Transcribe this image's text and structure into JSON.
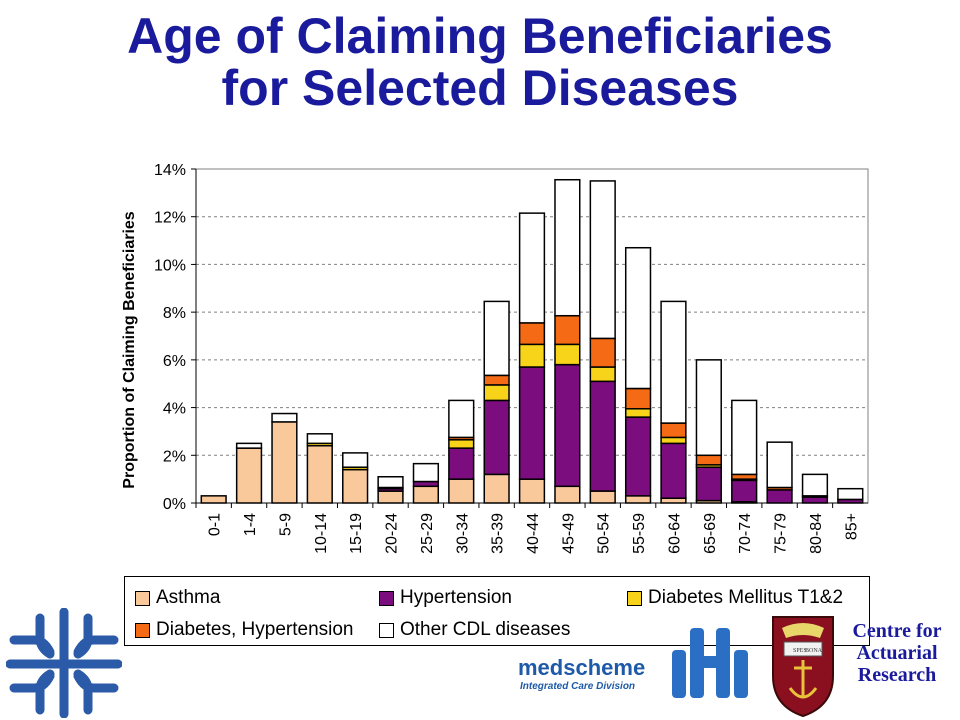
{
  "title": {
    "line1": "Age of Claiming Beneficiaries",
    "line2": "for Selected Diseases"
  },
  "colors": {
    "title": "#1a1a9c",
    "asthma": "#f9c89b",
    "hypertension": "#7b0d7e",
    "diabetes": "#f7d31a",
    "diab_hyp": "#f56a14",
    "other": "#ffffff"
  },
  "chart_data": {
    "type": "bar",
    "stacked": true,
    "ylabel": "Proportion of Claiming Beneficiaries",
    "ylim": [
      0,
      14
    ],
    "yticks": [
      "0%",
      "2%",
      "4%",
      "6%",
      "8%",
      "10%",
      "12%",
      "14%"
    ],
    "grid": true,
    "legend_position": "bottom",
    "categories": [
      "0-1",
      "1-4",
      "5-9",
      "10-14",
      "15-19",
      "20-24",
      "25-29",
      "30-34",
      "35-39",
      "40-44",
      "45-49",
      "50-54",
      "55-59",
      "60-64",
      "65-69",
      "70-74",
      "75-79",
      "80-84",
      "85+"
    ],
    "series": [
      {
        "name": "Asthma",
        "color": "#f9c89b",
        "values": [
          0.3,
          2.3,
          3.4,
          2.4,
          1.4,
          0.5,
          0.7,
          1.0,
          1.2,
          1.0,
          0.7,
          0.5,
          0.3,
          0.2,
          0.1,
          0.05,
          0.0,
          0.0,
          0.0
        ]
      },
      {
        "name": "Hypertension",
        "color": "#7b0d7e",
        "values": [
          0.0,
          0.0,
          0.0,
          0.0,
          0.0,
          0.1,
          0.2,
          1.3,
          3.1,
          4.7,
          5.1,
          4.6,
          3.3,
          2.3,
          1.4,
          0.9,
          0.55,
          0.25,
          0.15
        ]
      },
      {
        "name": "Diabetes Mellitus T1&2",
        "color": "#f7d31a",
        "values": [
          0.0,
          0.0,
          0.0,
          0.1,
          0.1,
          0.05,
          0.0,
          0.35,
          0.65,
          0.95,
          0.85,
          0.6,
          0.35,
          0.25,
          0.1,
          0.05,
          0.0,
          0.0,
          0.0
        ]
      },
      {
        "name": "Diabetes, Hypertension",
        "color": "#f56a14",
        "values": [
          0.0,
          0.0,
          0.0,
          0.0,
          0.0,
          0.0,
          0.0,
          0.1,
          0.4,
          0.9,
          1.2,
          1.2,
          0.85,
          0.6,
          0.4,
          0.2,
          0.1,
          0.05,
          0.0
        ]
      },
      {
        "name": "Other CDL diseases",
        "color": "#ffffff",
        "values": [
          0.0,
          0.2,
          0.35,
          0.4,
          0.6,
          0.45,
          0.75,
          1.55,
          3.1,
          4.6,
          5.7,
          6.6,
          5.9,
          5.1,
          4.0,
          3.1,
          1.9,
          0.9,
          0.45
        ]
      }
    ]
  },
  "legend": {
    "items": [
      {
        "label": "Asthma",
        "color": "#f9c89b"
      },
      {
        "label": "Hypertension",
        "color": "#7b0d7e"
      },
      {
        "label": "Diabetes Mellitus T1&2",
        "color": "#f7d31a"
      },
      {
        "label": "Diabetes, Hypertension",
        "color": "#f56a14"
      },
      {
        "label": "Other CDL diseases",
        "color": "#ffffff"
      }
    ]
  },
  "logos": {
    "medscheme": "medscheme",
    "medscheme_sub": "Integrated Care Division",
    "car_line1": "Centre for",
    "car_line2": "Actuarial",
    "car_line3": "Research",
    "crest_motto_left": "SPES",
    "crest_motto_right": "BONA"
  }
}
